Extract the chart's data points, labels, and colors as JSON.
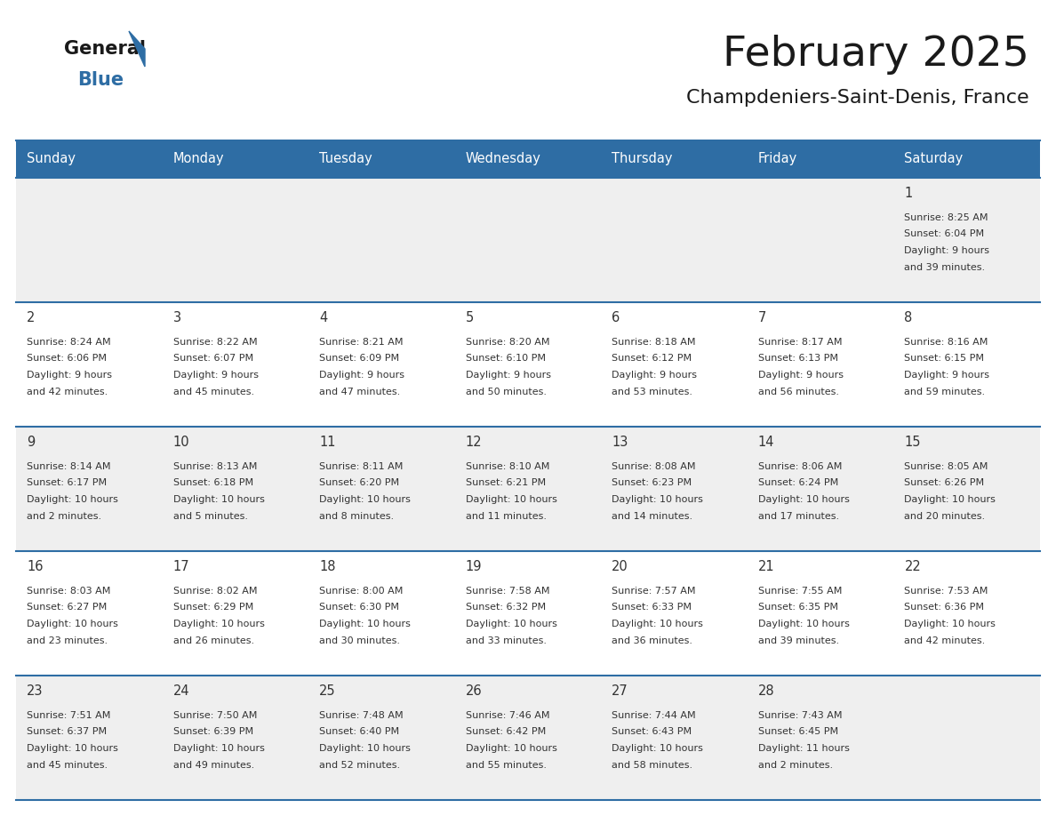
{
  "title": "February 2025",
  "subtitle": "Champdeniers-Saint-Denis, France",
  "days_of_week": [
    "Sunday",
    "Monday",
    "Tuesday",
    "Wednesday",
    "Thursday",
    "Friday",
    "Saturday"
  ],
  "header_bg": "#2E6DA4",
  "header_text": "#FFFFFF",
  "cell_bg_light": "#EFEFEF",
  "cell_bg_white": "#FFFFFF",
  "border_color": "#2E6DA4",
  "text_color": "#333333",
  "day_num_color": "#333333",
  "title_color": "#1a1a1a",
  "subtitle_color": "#1a1a1a",
  "logo_general_color": "#1a1a1a",
  "logo_blue_color": "#2E6DA4",
  "calendar_data": [
    [
      null,
      null,
      null,
      null,
      null,
      null,
      {
        "day": 1,
        "sunrise": "8:25 AM",
        "sunset": "6:04 PM",
        "daylight_l1": "Daylight: 9 hours",
        "daylight_l2": "and 39 minutes."
      }
    ],
    [
      {
        "day": 2,
        "sunrise": "8:24 AM",
        "sunset": "6:06 PM",
        "daylight_l1": "Daylight: 9 hours",
        "daylight_l2": "and 42 minutes."
      },
      {
        "day": 3,
        "sunrise": "8:22 AM",
        "sunset": "6:07 PM",
        "daylight_l1": "Daylight: 9 hours",
        "daylight_l2": "and 45 minutes."
      },
      {
        "day": 4,
        "sunrise": "8:21 AM",
        "sunset": "6:09 PM",
        "daylight_l1": "Daylight: 9 hours",
        "daylight_l2": "and 47 minutes."
      },
      {
        "day": 5,
        "sunrise": "8:20 AM",
        "sunset": "6:10 PM",
        "daylight_l1": "Daylight: 9 hours",
        "daylight_l2": "and 50 minutes."
      },
      {
        "day": 6,
        "sunrise": "8:18 AM",
        "sunset": "6:12 PM",
        "daylight_l1": "Daylight: 9 hours",
        "daylight_l2": "and 53 minutes."
      },
      {
        "day": 7,
        "sunrise": "8:17 AM",
        "sunset": "6:13 PM",
        "daylight_l1": "Daylight: 9 hours",
        "daylight_l2": "and 56 minutes."
      },
      {
        "day": 8,
        "sunrise": "8:16 AM",
        "sunset": "6:15 PM",
        "daylight_l1": "Daylight: 9 hours",
        "daylight_l2": "and 59 minutes."
      }
    ],
    [
      {
        "day": 9,
        "sunrise": "8:14 AM",
        "sunset": "6:17 PM",
        "daylight_l1": "Daylight: 10 hours",
        "daylight_l2": "and 2 minutes."
      },
      {
        "day": 10,
        "sunrise": "8:13 AM",
        "sunset": "6:18 PM",
        "daylight_l1": "Daylight: 10 hours",
        "daylight_l2": "and 5 minutes."
      },
      {
        "day": 11,
        "sunrise": "8:11 AM",
        "sunset": "6:20 PM",
        "daylight_l1": "Daylight: 10 hours",
        "daylight_l2": "and 8 minutes."
      },
      {
        "day": 12,
        "sunrise": "8:10 AM",
        "sunset": "6:21 PM",
        "daylight_l1": "Daylight: 10 hours",
        "daylight_l2": "and 11 minutes."
      },
      {
        "day": 13,
        "sunrise": "8:08 AM",
        "sunset": "6:23 PM",
        "daylight_l1": "Daylight: 10 hours",
        "daylight_l2": "and 14 minutes."
      },
      {
        "day": 14,
        "sunrise": "8:06 AM",
        "sunset": "6:24 PM",
        "daylight_l1": "Daylight: 10 hours",
        "daylight_l2": "and 17 minutes."
      },
      {
        "day": 15,
        "sunrise": "8:05 AM",
        "sunset": "6:26 PM",
        "daylight_l1": "Daylight: 10 hours",
        "daylight_l2": "and 20 minutes."
      }
    ],
    [
      {
        "day": 16,
        "sunrise": "8:03 AM",
        "sunset": "6:27 PM",
        "daylight_l1": "Daylight: 10 hours",
        "daylight_l2": "and 23 minutes."
      },
      {
        "day": 17,
        "sunrise": "8:02 AM",
        "sunset": "6:29 PM",
        "daylight_l1": "Daylight: 10 hours",
        "daylight_l2": "and 26 minutes."
      },
      {
        "day": 18,
        "sunrise": "8:00 AM",
        "sunset": "6:30 PM",
        "daylight_l1": "Daylight: 10 hours",
        "daylight_l2": "and 30 minutes."
      },
      {
        "day": 19,
        "sunrise": "7:58 AM",
        "sunset": "6:32 PM",
        "daylight_l1": "Daylight: 10 hours",
        "daylight_l2": "and 33 minutes."
      },
      {
        "day": 20,
        "sunrise": "7:57 AM",
        "sunset": "6:33 PM",
        "daylight_l1": "Daylight: 10 hours",
        "daylight_l2": "and 36 minutes."
      },
      {
        "day": 21,
        "sunrise": "7:55 AM",
        "sunset": "6:35 PM",
        "daylight_l1": "Daylight: 10 hours",
        "daylight_l2": "and 39 minutes."
      },
      {
        "day": 22,
        "sunrise": "7:53 AM",
        "sunset": "6:36 PM",
        "daylight_l1": "Daylight: 10 hours",
        "daylight_l2": "and 42 minutes."
      }
    ],
    [
      {
        "day": 23,
        "sunrise": "7:51 AM",
        "sunset": "6:37 PM",
        "daylight_l1": "Daylight: 10 hours",
        "daylight_l2": "and 45 minutes."
      },
      {
        "day": 24,
        "sunrise": "7:50 AM",
        "sunset": "6:39 PM",
        "daylight_l1": "Daylight: 10 hours",
        "daylight_l2": "and 49 minutes."
      },
      {
        "day": 25,
        "sunrise": "7:48 AM",
        "sunset": "6:40 PM",
        "daylight_l1": "Daylight: 10 hours",
        "daylight_l2": "and 52 minutes."
      },
      {
        "day": 26,
        "sunrise": "7:46 AM",
        "sunset": "6:42 PM",
        "daylight_l1": "Daylight: 10 hours",
        "daylight_l2": "and 55 minutes."
      },
      {
        "day": 27,
        "sunrise": "7:44 AM",
        "sunset": "6:43 PM",
        "daylight_l1": "Daylight: 10 hours",
        "daylight_l2": "and 58 minutes."
      },
      {
        "day": 28,
        "sunrise": "7:43 AM",
        "sunset": "6:45 PM",
        "daylight_l1": "Daylight: 11 hours",
        "daylight_l2": "and 2 minutes."
      },
      null
    ]
  ]
}
